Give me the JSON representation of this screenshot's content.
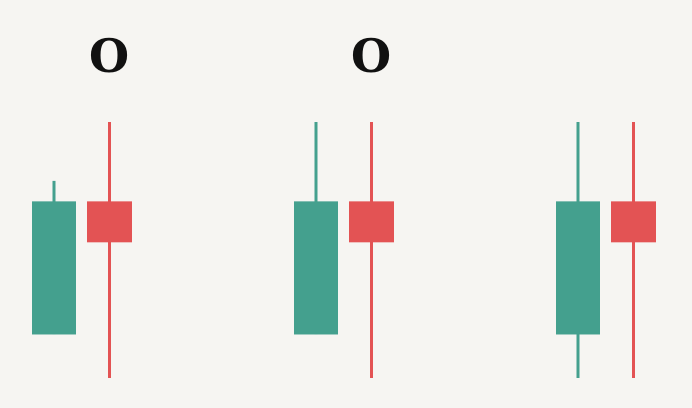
{
  "chart_data": {
    "type": "candlestick",
    "colors": {
      "bullish": "#44a08e",
      "bearish": "#e35354",
      "background": "#f6f5f2",
      "label": "#111111"
    },
    "price_range": [
      0,
      100
    ],
    "groups": [
      {
        "label": "O",
        "candles": [
          {
            "direction": "bullish",
            "open": 17,
            "close": 69,
            "high": 77,
            "low": 17
          },
          {
            "direction": "bearish",
            "open": 69,
            "close": 53,
            "high": 100,
            "low": 0
          }
        ]
      },
      {
        "label": "O",
        "candles": [
          {
            "direction": "bullish",
            "open": 17,
            "close": 69,
            "high": 100,
            "low": 17
          },
          {
            "direction": "bearish",
            "open": 69,
            "close": 53,
            "high": 100,
            "low": 0
          }
        ]
      },
      {
        "label": "",
        "candles": [
          {
            "direction": "bullish",
            "open": 17,
            "close": 69,
            "high": 100,
            "low": 0
          },
          {
            "direction": "bearish",
            "open": 69,
            "close": 53,
            "high": 100,
            "low": 0
          }
        ]
      }
    ]
  }
}
